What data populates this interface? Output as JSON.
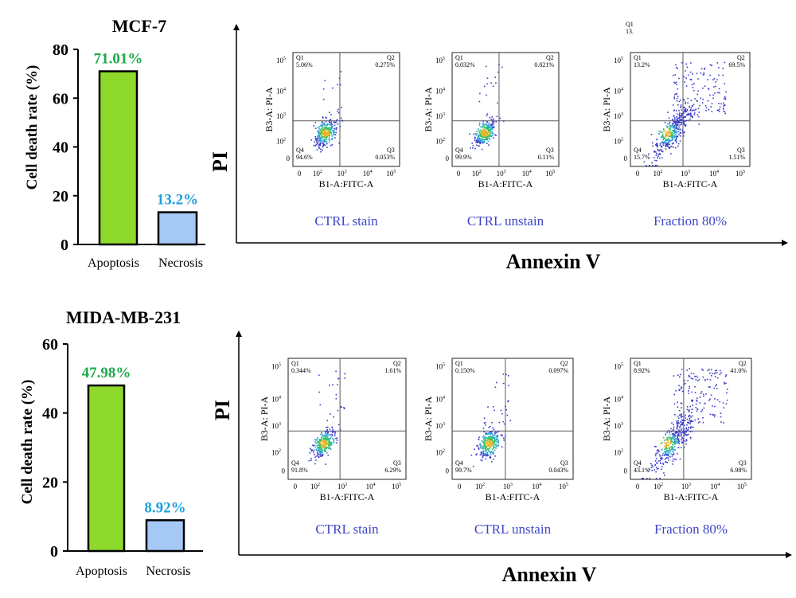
{
  "colors": {
    "apoptosis_bar": "#8ed92b",
    "necrosis_bar": "#a6c8f5",
    "apoptosis_label": "#1ea84a",
    "necrosis_label": "#1aa0dd",
    "panel_caption": "#3f46c9",
    "gate_line": "#5a5a5a"
  },
  "chart_data": [
    {
      "type": "bar",
      "panel": "top",
      "title": "MCF-7",
      "ylabel": "Cell death rate (%)",
      "categories": [
        "Apoptosis",
        "Necrosis"
      ],
      "values": [
        71.01,
        13.2
      ],
      "data_labels": [
        "71.01%",
        "13.2%"
      ],
      "ylim": [
        0,
        80
      ],
      "yticks": [
        0,
        20,
        40,
        60,
        80
      ]
    },
    {
      "type": "bar",
      "panel": "bottom",
      "title": "MIDA-MB-231",
      "ylabel": "Cell death rate (%)",
      "categories": [
        "Apoptosis",
        "Necrosis"
      ],
      "values": [
        47.98,
        8.92
      ],
      "data_labels": [
        "47.98%",
        "8.92%"
      ],
      "ylim": [
        0,
        60
      ],
      "yticks": [
        0,
        20,
        40,
        60
      ]
    },
    {
      "type": "scatter",
      "panel": "top",
      "y_axis_title": "PI",
      "x_axis_title": "Annexin V",
      "stray_label": [
        "Q1",
        "13."
      ],
      "plots": [
        {
          "caption": "CTRL stain",
          "xlabel": "B1-A:FITC-A",
          "ylabel": "B3-A: PI-A",
          "quadrants": {
            "Q1": "5.06%",
            "Q2": "0.275%",
            "Q3": "0.053%",
            "Q4": "94.6%"
          },
          "cloud": "tight"
        },
        {
          "caption": "CTRL unstain",
          "xlabel": "B1-A:FITC-A",
          "ylabel": "B3-A: PI-A",
          "quadrants": {
            "Q1": "0.032%",
            "Q2": "0.021%",
            "Q3": "0.11%",
            "Q4": "99.9%"
          },
          "cloud": "tight"
        },
        {
          "caption": "Fraction 80%",
          "xlabel": "B1-A:FITC-A",
          "ylabel": "B3-A: PI-A",
          "quadrants": {
            "Q1": "13.2%",
            "Q2": "69.5%",
            "Q3": "1.51%",
            "Q4": "15.7%"
          },
          "cloud": "spread"
        }
      ]
    },
    {
      "type": "scatter",
      "panel": "bottom",
      "y_axis_title": "PI",
      "x_axis_title": "Annexin V",
      "plots": [
        {
          "caption": "CTRL  stain",
          "xlabel": "B1-A:FITC-A",
          "ylabel": "B3-A: PI-A",
          "quadrants": {
            "Q1": "0.344%",
            "Q2": "1.61%",
            "Q3": "6.29%",
            "Q4": "91.8%"
          },
          "cloud": "tight"
        },
        {
          "caption": "CTRL unstain",
          "xlabel": "B1-A:FITC-A",
          "ylabel": "B3-A: PI-A",
          "quadrants": {
            "Q1": "0.150%",
            "Q2": "0.097%",
            "Q3": "0.043%",
            "Q4": "99.7%"
          },
          "cloud": "tight"
        },
        {
          "caption": "Fraction 80%",
          "xlabel": "B1-A:FITC-A",
          "ylabel": "B3-A: PI-A",
          "quadrants": {
            "Q1": "8.92%",
            "Q2": "41.0%",
            "Q3": "6.98%",
            "Q4": "43.1%"
          },
          "cloud": "spread"
        }
      ]
    }
  ]
}
